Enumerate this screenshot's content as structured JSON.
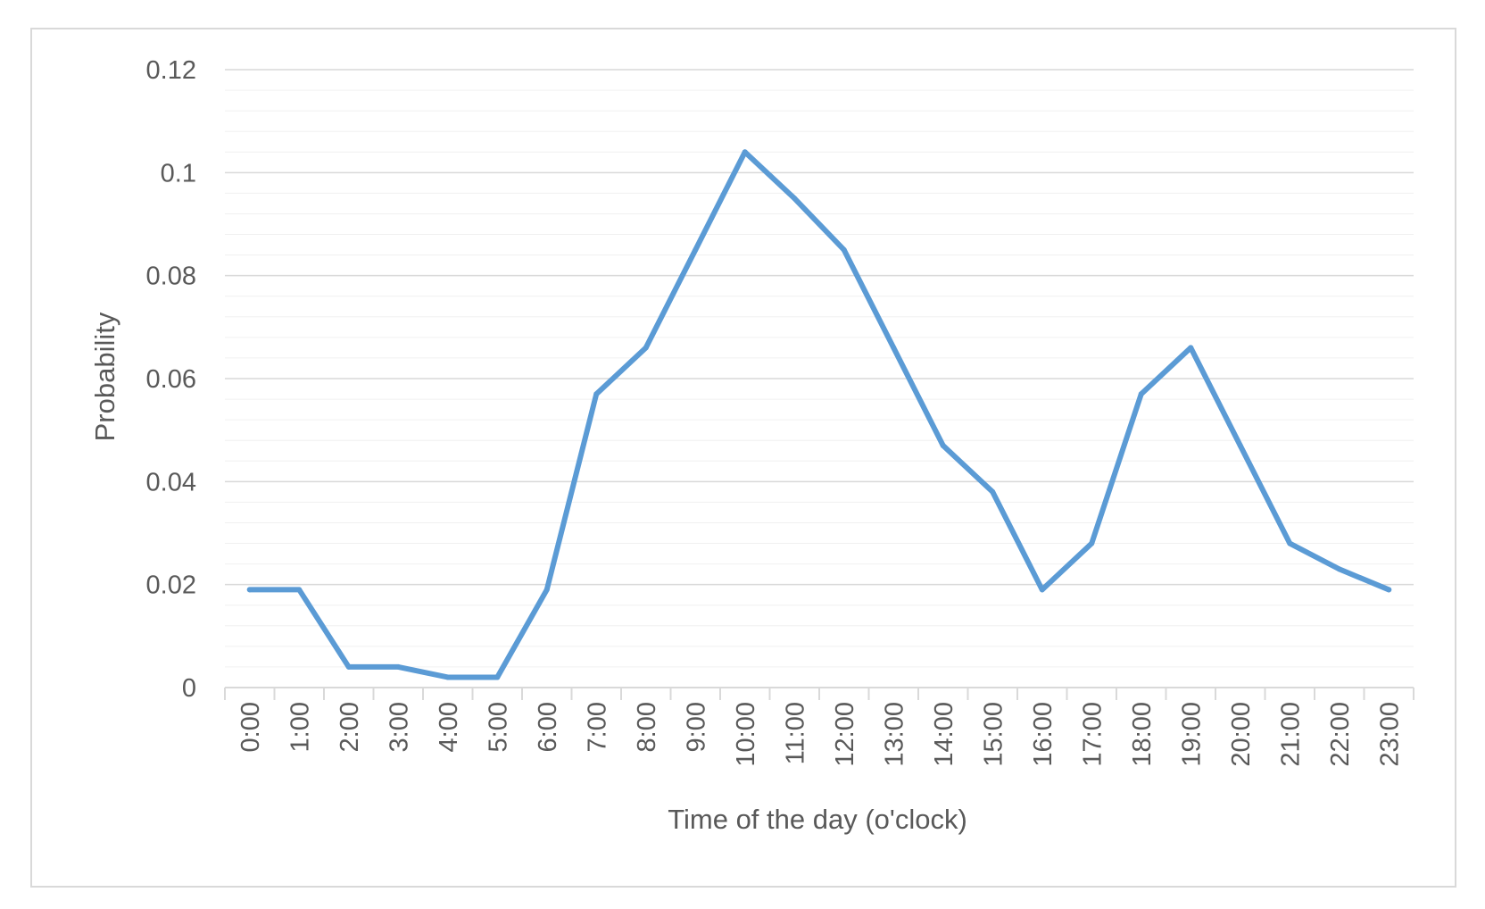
{
  "chart_data": {
    "type": "line",
    "title": "",
    "xlabel": "Time of the day (o'clock)",
    "ylabel": "Probability",
    "categories": [
      "0:00",
      "1:00",
      "2:00",
      "3:00",
      "4:00",
      "5:00",
      "6:00",
      "7:00",
      "8:00",
      "9:00",
      "10:00",
      "11:00",
      "12:00",
      "13:00",
      "14:00",
      "15:00",
      "16:00",
      "17:00",
      "18:00",
      "19:00",
      "20:00",
      "21:00",
      "22:00",
      "23:00"
    ],
    "series": [
      {
        "values": [
          0.019,
          0.019,
          0.004,
          0.004,
          0.002,
          0.002,
          0.019,
          0.057,
          0.066,
          0.085,
          0.104,
          0.095,
          0.085,
          0.066,
          0.047,
          0.038,
          0.019,
          0.028,
          0.057,
          0.066,
          0.047,
          0.028,
          0.023,
          0.019
        ],
        "color": "#5b9bd5"
      }
    ],
    "ylim": [
      0,
      0.12
    ],
    "yticks": [
      0,
      0.02,
      0.04,
      0.06,
      0.08,
      0.1,
      0.12
    ],
    "ytick_labels": [
      "0",
      "0.02",
      "0.04",
      "0.06",
      "0.08",
      "0.1",
      "0.12"
    ],
    "y_minor_step": 0.004,
    "grid": true,
    "legend": "none"
  },
  "colors": {
    "line": "#5b9bd5",
    "major_grid": "#d9d9d9",
    "minor_grid": "#f0f0f0",
    "text": "#595959",
    "frame": "#d9d9d9"
  }
}
